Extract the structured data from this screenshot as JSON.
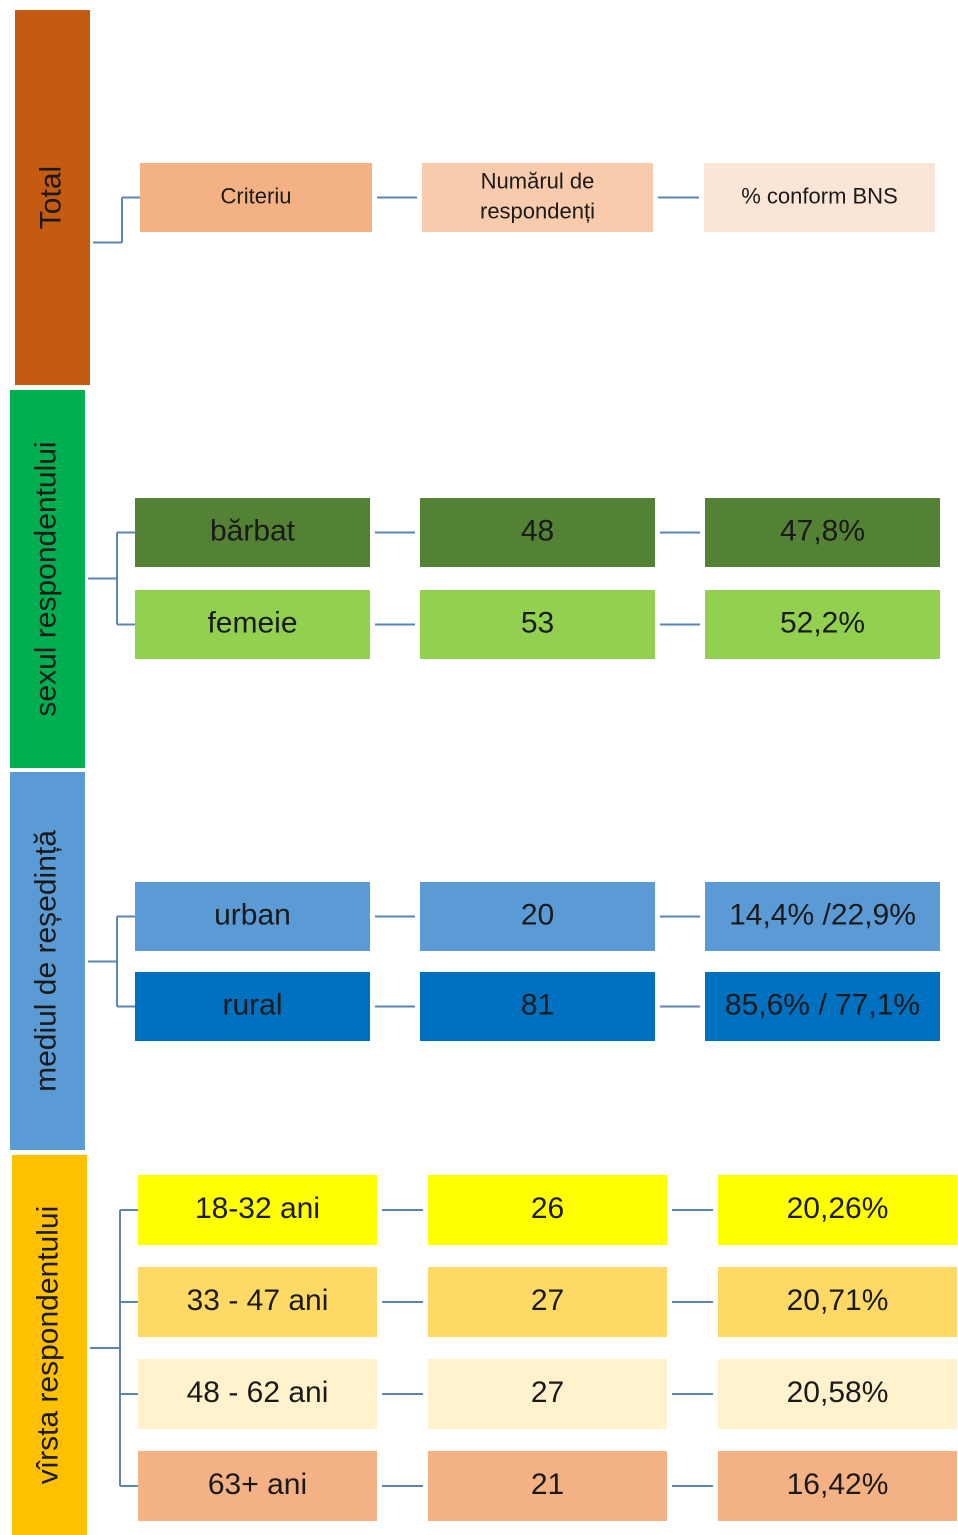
{
  "groups": [
    {
      "label": "Total",
      "rows": [
        [
          "Criteriu",
          "Numărul de respondenți",
          "% conform BNS"
        ]
      ]
    },
    {
      "label": "sexul respondentului",
      "rows": [
        [
          "bărbat",
          "48",
          "47,8%"
        ],
        [
          "femeie",
          "53",
          "52,2%"
        ]
      ]
    },
    {
      "label": "mediul de reședință",
      "rows": [
        [
          "urban",
          "20",
          "14,4%  /22,9%"
        ],
        [
          "rural",
          "81",
          "85,6% / 77,1%"
        ]
      ]
    },
    {
      "label": "vîrsta respondentului",
      "rows": [
        [
          "18-32  ani",
          "26",
          "20,26%"
        ],
        [
          "33 - 47 ani",
          "27",
          "20,71%"
        ],
        [
          "48 - 62 ani",
          "27",
          "20,58%"
        ],
        [
          "63+ ani",
          "21",
          "16,42%"
        ]
      ]
    }
  ]
}
